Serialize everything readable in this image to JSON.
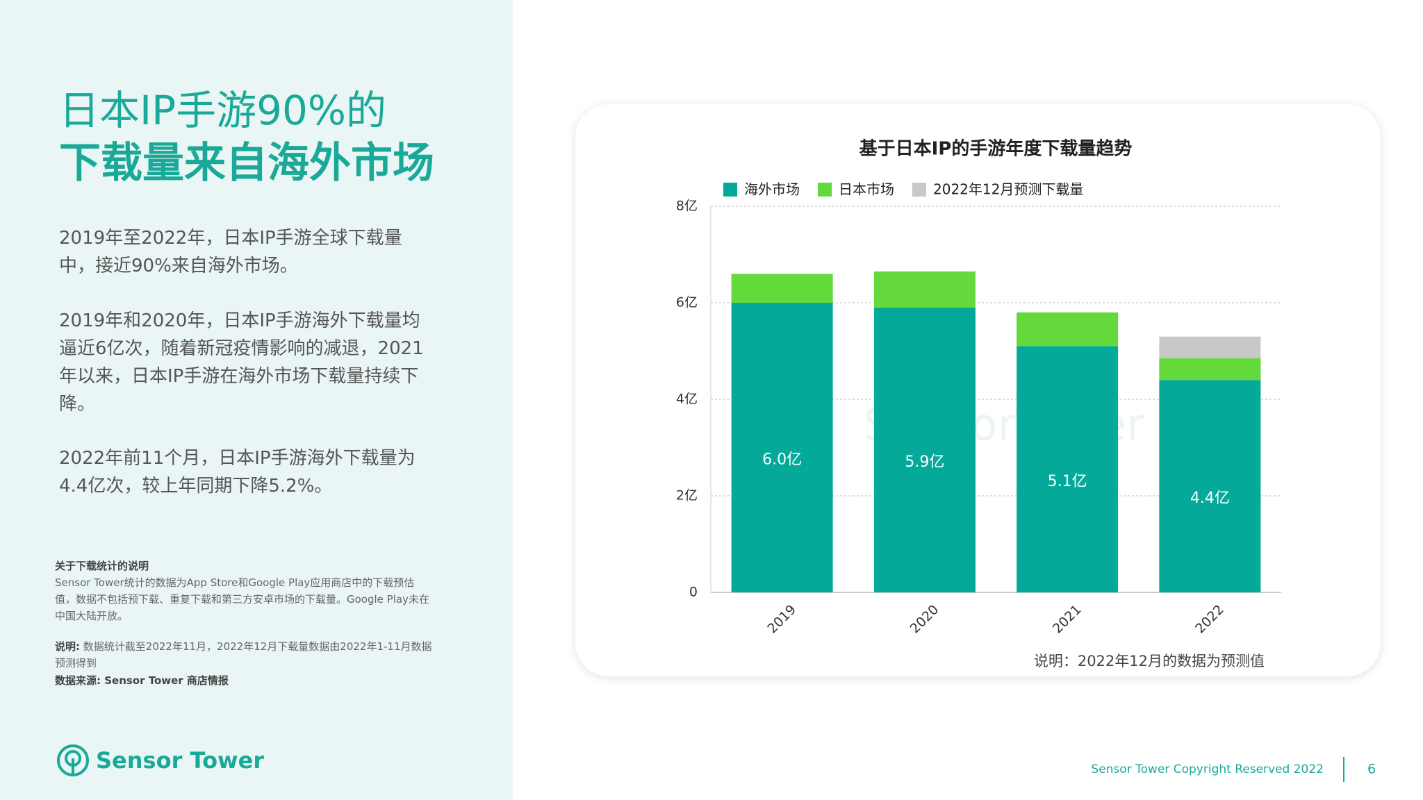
{
  "header": {
    "title_line1": "日本IP手游90%的",
    "title_line2": "下载量来自海外市场"
  },
  "paragraphs": [
    "2019年至2022年，日本IP手游全球下载量中，接近90%来自海外市场。",
    "2019年和2020年，日本IP手游海外下载量均逼近6亿次，随着新冠疫情影响的减退，2021年以来，日本IP手游在海外市场下载量持续下降。",
    "2022年前11个月，日本IP手游海外下载量为4.4亿次，较上年同期下降5.2%。"
  ],
  "notes": {
    "heading": "关于下载统计的说明",
    "body": "Sensor Tower统计的数据为App Store和Google Play应用商店中的下载预估值，数据不包括预下载、重复下载和第三方安卓市场的下载量。Google Play未在中国大陆开放。",
    "remark_label": "说明:",
    "remark": "数据统计截至2022年11月，2022年12月下载量数据由2022年1-11月数据预测得到",
    "source": "数据来源: Sensor Tower 商店情报"
  },
  "logo": "Sensor Tower",
  "footer": {
    "copyright": "Sensor Tower Copyright Reserved 2022",
    "page": "6"
  },
  "chart_data": {
    "type": "stacked_bar",
    "title": "基于日本IP的手游年度下载量趋势",
    "watermark": "SensorTower",
    "categories": [
      "2019",
      "2020",
      "2021",
      "2022"
    ],
    "series": [
      {
        "name": "海外市场",
        "color": "#05a99a",
        "values": [
          6.0,
          5.9,
          5.1,
          4.4
        ],
        "value_labels": [
          "6.0亿",
          "5.9亿",
          "5.1亿",
          "4.4亿"
        ]
      },
      {
        "name": "日本市场",
        "color": "#63d93c",
        "values": [
          0.6,
          0.75,
          0.7,
          0.45
        ]
      },
      {
        "name": "2022年12月预测下载量",
        "color": "#c8c8c8",
        "values": [
          null,
          null,
          null,
          0.45
        ]
      }
    ],
    "ylim": [
      0,
      8
    ],
    "yticks": [
      0,
      {
        "value": 2,
        "label": "2亿"
      },
      {
        "value": 4,
        "label": "4亿"
      },
      {
        "value": 6,
        "label": "6亿"
      },
      {
        "value": 8,
        "label": "8亿"
      }
    ],
    "grid": true,
    "note": "说明：2022年12月的数据为预测值"
  }
}
